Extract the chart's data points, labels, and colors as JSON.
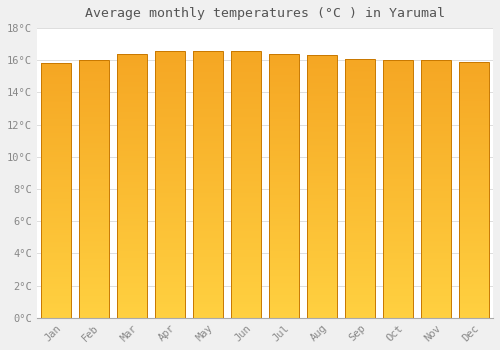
{
  "months": [
    "Jan",
    "Feb",
    "Mar",
    "Apr",
    "May",
    "Jun",
    "Jul",
    "Aug",
    "Sep",
    "Oct",
    "Nov",
    "Dec"
  ],
  "temperatures": [
    15.8,
    16.0,
    16.4,
    16.6,
    16.6,
    16.6,
    16.4,
    16.3,
    16.1,
    16.0,
    16.0,
    15.9
  ],
  "title": "Average monthly temperatures (°C ) in Yarumal",
  "ylabel_ticks": [
    0,
    2,
    4,
    6,
    8,
    10,
    12,
    14,
    16,
    18
  ],
  "ylim": [
    0,
    18
  ],
  "bar_color_top": "#F5A623",
  "bar_color_bottom": "#FFD040",
  "bar_edge_color": "#C87800",
  "background_color": "#FFFFFF",
  "fig_background_color": "#F0F0F0",
  "grid_color": "#DDDDDD",
  "text_color": "#888888",
  "title_color": "#555555"
}
